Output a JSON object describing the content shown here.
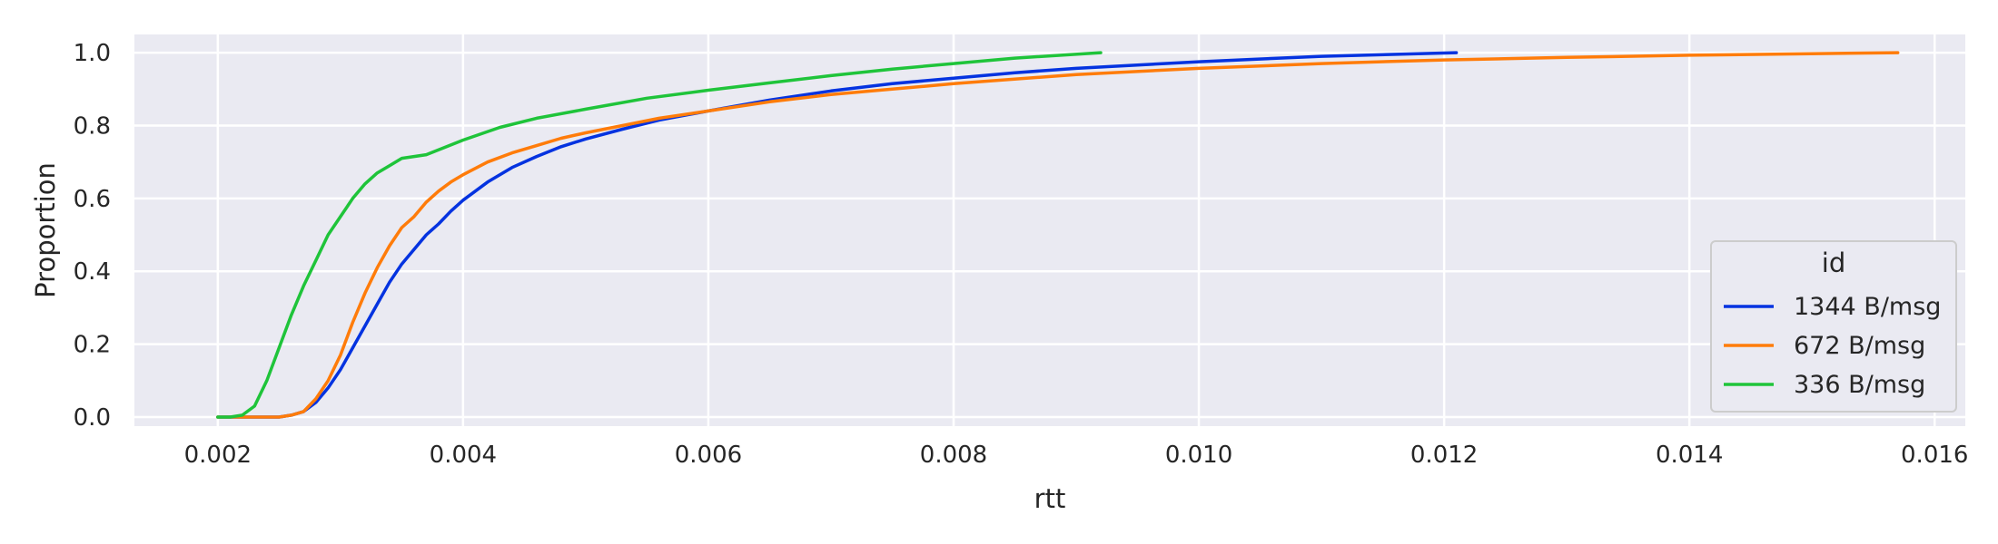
{
  "chart_data": {
    "type": "line",
    "title": "",
    "xlabel": "rtt",
    "ylabel": "Proportion",
    "xlim": [
      0.00132,
      0.01625
    ],
    "ylim": [
      -0.025,
      1.05
    ],
    "grid": true,
    "x_ticks": [
      0.002,
      0.004,
      0.006,
      0.008,
      0.01,
      0.012,
      0.014,
      0.016
    ],
    "x_tick_labels": [
      "0.002",
      "0.004",
      "0.006",
      "0.008",
      "0.010",
      "0.012",
      "0.014",
      "0.016"
    ],
    "y_ticks": [
      0.0,
      0.2,
      0.4,
      0.6,
      0.8,
      1.0
    ],
    "y_tick_labels": [
      "0.0",
      "0.2",
      "0.4",
      "0.6",
      "0.8",
      "1.0"
    ],
    "legend": {
      "title": "id",
      "position": "lower-right"
    },
    "series": [
      {
        "name": "1344 B/msg",
        "color": "#0433e0",
        "x": [
          0.002,
          0.0025,
          0.0026,
          0.0027,
          0.0028,
          0.0029,
          0.003,
          0.0031,
          0.0032,
          0.0033,
          0.0034,
          0.0035,
          0.0036,
          0.0037,
          0.0038,
          0.0039,
          0.004,
          0.0042,
          0.0044,
          0.0046,
          0.0048,
          0.005,
          0.0053,
          0.0056,
          0.006,
          0.0065,
          0.007,
          0.0075,
          0.008,
          0.0085,
          0.009,
          0.01,
          0.011,
          0.0121
        ],
        "y": [
          0.0,
          0.0,
          0.005,
          0.015,
          0.04,
          0.08,
          0.13,
          0.19,
          0.25,
          0.31,
          0.37,
          0.42,
          0.46,
          0.5,
          0.53,
          0.565,
          0.595,
          0.645,
          0.685,
          0.715,
          0.742,
          0.763,
          0.79,
          0.815,
          0.84,
          0.87,
          0.895,
          0.915,
          0.93,
          0.945,
          0.957,
          0.975,
          0.99,
          1.0
        ]
      },
      {
        "name": "672 B/msg",
        "color": "#ff7c0a",
        "x": [
          0.002,
          0.0025,
          0.0026,
          0.0027,
          0.0028,
          0.0029,
          0.003,
          0.0031,
          0.0032,
          0.0033,
          0.0034,
          0.0035,
          0.0036,
          0.0037,
          0.0038,
          0.0039,
          0.004,
          0.0042,
          0.0044,
          0.0046,
          0.0048,
          0.005,
          0.0053,
          0.0056,
          0.006,
          0.0065,
          0.007,
          0.0075,
          0.008,
          0.009,
          0.01,
          0.011,
          0.012,
          0.013,
          0.014,
          0.0157
        ],
        "y": [
          0.0,
          0.0,
          0.005,
          0.015,
          0.05,
          0.1,
          0.17,
          0.26,
          0.34,
          0.41,
          0.47,
          0.52,
          0.55,
          0.59,
          0.62,
          0.645,
          0.665,
          0.7,
          0.725,
          0.745,
          0.765,
          0.78,
          0.8,
          0.82,
          0.84,
          0.865,
          0.885,
          0.9,
          0.915,
          0.94,
          0.957,
          0.97,
          0.98,
          0.987,
          0.993,
          1.0
        ]
      },
      {
        "name": "336 B/msg",
        "color": "#1fc43a",
        "x": [
          0.002,
          0.0021,
          0.0022,
          0.0023,
          0.0024,
          0.0025,
          0.0026,
          0.0027,
          0.0028,
          0.0029,
          0.003,
          0.0031,
          0.0032,
          0.0033,
          0.0034,
          0.0035,
          0.0036,
          0.0037,
          0.004,
          0.0043,
          0.0046,
          0.005,
          0.0055,
          0.006,
          0.0065,
          0.007,
          0.0075,
          0.008,
          0.0085,
          0.0092
        ],
        "y": [
          0.0,
          0.0,
          0.005,
          0.03,
          0.1,
          0.19,
          0.28,
          0.36,
          0.43,
          0.5,
          0.55,
          0.6,
          0.64,
          0.67,
          0.69,
          0.71,
          0.715,
          0.72,
          0.76,
          0.795,
          0.82,
          0.845,
          0.875,
          0.897,
          0.917,
          0.937,
          0.955,
          0.97,
          0.985,
          1.0
        ]
      }
    ]
  }
}
